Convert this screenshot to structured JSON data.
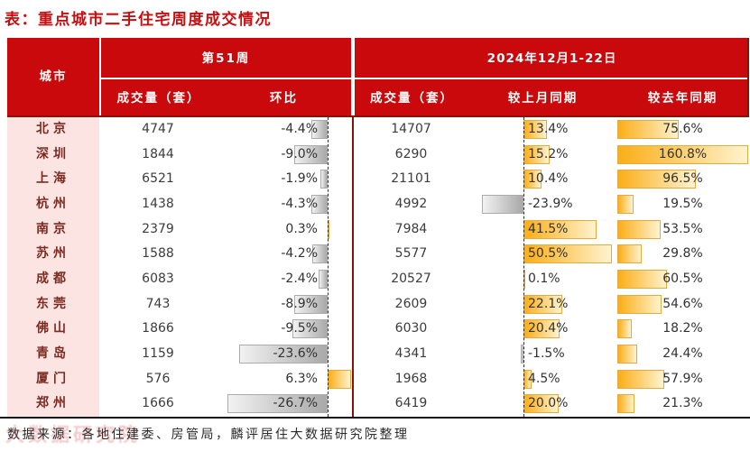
{
  "title": "表：重点城市二手住宅周度成交情况",
  "header": {
    "city": "城市",
    "week_group": "第51周",
    "month_group": "2024年12月1-22日",
    "week_volume": "成交量（套）",
    "week_ring": "环比",
    "month_volume": "成交量（套）",
    "month_mom": "较上月同期",
    "month_yoy": "较去年同期"
  },
  "rows": [
    {
      "city": "北京",
      "week_vol": "4747",
      "week_ring": -4.4,
      "week_ring_label": "-4.4%",
      "month_vol": "14707",
      "mom": 13.4,
      "mom_label": "13.4%",
      "yoy": 75.6,
      "yoy_label": "75.6%"
    },
    {
      "city": "深圳",
      "week_vol": "1844",
      "week_ring": -9.0,
      "week_ring_label": "-9.0%",
      "month_vol": "6290",
      "mom": 15.2,
      "mom_label": "15.2%",
      "yoy": 160.8,
      "yoy_label": "160.8%"
    },
    {
      "city": "上海",
      "week_vol": "6521",
      "week_ring": -1.9,
      "week_ring_label": "-1.9%",
      "month_vol": "21101",
      "mom": 10.4,
      "mom_label": "10.4%",
      "yoy": 96.5,
      "yoy_label": "96.5%"
    },
    {
      "city": "杭州",
      "week_vol": "1438",
      "week_ring": -4.3,
      "week_ring_label": "-4.3%",
      "month_vol": "4992",
      "mom": -23.9,
      "mom_label": "-23.9%",
      "yoy": 19.5,
      "yoy_label": "19.5%"
    },
    {
      "city": "南京",
      "week_vol": "2379",
      "week_ring": 0.3,
      "week_ring_label": "0.3%",
      "month_vol": "7984",
      "mom": 41.5,
      "mom_label": "41.5%",
      "yoy": 53.5,
      "yoy_label": "53.5%"
    },
    {
      "city": "苏州",
      "week_vol": "1588",
      "week_ring": -4.2,
      "week_ring_label": "-4.2%",
      "month_vol": "5577",
      "mom": 50.5,
      "mom_label": "50.5%",
      "yoy": 29.8,
      "yoy_label": "29.8%"
    },
    {
      "city": "成都",
      "week_vol": "6083",
      "week_ring": -2.4,
      "week_ring_label": "-2.4%",
      "month_vol": "20527",
      "mom": 0.1,
      "mom_label": "0.1%",
      "yoy": 60.5,
      "yoy_label": "60.5%"
    },
    {
      "city": "东莞",
      "week_vol": "743",
      "week_ring": -8.9,
      "week_ring_label": "-8.9%",
      "month_vol": "2609",
      "mom": 22.1,
      "mom_label": "22.1%",
      "yoy": 54.6,
      "yoy_label": "54.6%"
    },
    {
      "city": "佛山",
      "week_vol": "1866",
      "week_ring": -9.5,
      "week_ring_label": "-9.5%",
      "month_vol": "6030",
      "mom": 20.4,
      "mom_label": "20.4%",
      "yoy": 18.2,
      "yoy_label": "18.2%"
    },
    {
      "city": "青岛",
      "week_vol": "1159",
      "week_ring": -23.6,
      "week_ring_label": "-23.6%",
      "month_vol": "4341",
      "mom": -1.5,
      "mom_label": "-1.5%",
      "yoy": 24.4,
      "yoy_label": "24.4%"
    },
    {
      "city": "厦门",
      "week_vol": "576",
      "week_ring": 6.3,
      "week_ring_label": "6.3%",
      "month_vol": "1968",
      "mom": 4.5,
      "mom_label": "4.5%",
      "yoy": 57.9,
      "yoy_label": "57.9%"
    },
    {
      "city": "郑州",
      "week_vol": "1666",
      "week_ring": -26.7,
      "week_ring_label": "-26.7%",
      "month_vol": "6419",
      "mom": 20.0,
      "mom_label": "20.0%",
      "yoy": 21.3,
      "yoy_label": "21.3%"
    }
  ],
  "footer": {
    "source": "数据来源：各地住建委、房管局，麟评居住大数据研究院整理"
  },
  "watermark": "大数据研究院",
  "colors": {
    "header_bg": "#C9090B",
    "title_text": "#C70F10",
    "city_cell_bg": "#FBE4E2",
    "city_text": "#7A2B22",
    "dark_red_rule": "#8A1008",
    "bar_positive": "#FBAE17",
    "bar_negative": "#A9A9A9",
    "bottom_rule": "#141414"
  },
  "chart_data": {
    "type": "table",
    "title": "表：重点城市二手住宅周度成交情况",
    "columns": [
      "城市",
      "第51周 成交量（套）",
      "第51周 环比(%)",
      "2024年12月1-22日 成交量（套）",
      "较上月同期(%)",
      "较去年同期(%)"
    ],
    "rows": [
      [
        "北京",
        4747,
        -4.4,
        14707,
        13.4,
        75.6
      ],
      [
        "深圳",
        1844,
        -9.0,
        6290,
        15.2,
        160.8
      ],
      [
        "上海",
        6521,
        -1.9,
        21101,
        10.4,
        96.5
      ],
      [
        "杭州",
        1438,
        -4.3,
        4992,
        -23.9,
        19.5
      ],
      [
        "南京",
        2379,
        0.3,
        7984,
        41.5,
        53.5
      ],
      [
        "苏州",
        1588,
        -4.2,
        5577,
        50.5,
        29.8
      ],
      [
        "成都",
        6083,
        -2.4,
        20527,
        0.1,
        60.5
      ],
      [
        "东莞",
        743,
        -8.9,
        2609,
        22.1,
        54.6
      ],
      [
        "佛山",
        1866,
        -9.5,
        6030,
        20.4,
        18.2
      ],
      [
        "青岛",
        1159,
        -23.6,
        4341,
        -1.5,
        24.4
      ],
      [
        "厦门",
        576,
        6.3,
        1968,
        4.5,
        57.9
      ],
      [
        "郑州",
        1666,
        -26.7,
        6419,
        20.0,
        21.3
      ]
    ],
    "notes": "环比 and 较上月同期 columns show diverging in-cell data bars (gray=negative, yellow=positive) around a dashed zero axis; 较去年同期 shows left-anchored yellow bars proportional to value.",
    "legend_position": "none",
    "grid": false
  }
}
